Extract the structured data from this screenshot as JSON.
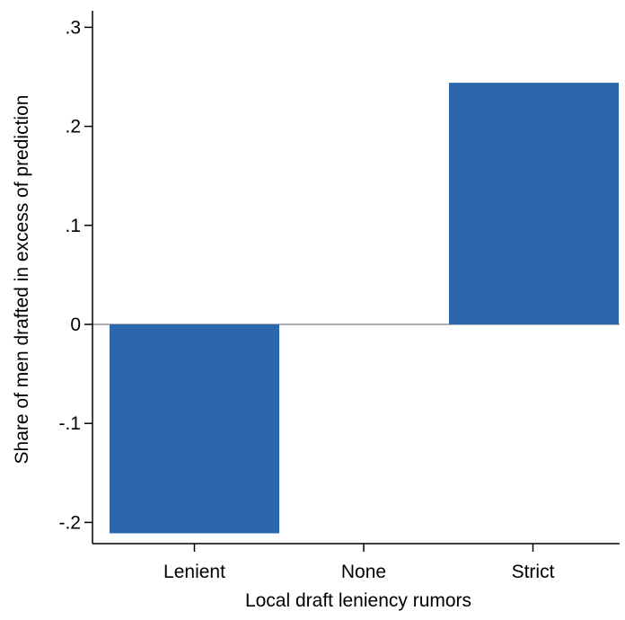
{
  "chart_data": {
    "type": "bar",
    "title": "",
    "xlabel": "Local draft leniency rumors",
    "ylabel": "Share of men drafted in excess of prediction",
    "categories": [
      "Lenient",
      "None",
      "Strict"
    ],
    "values": [
      -0.211,
      0.0,
      0.244
    ],
    "ylim": [
      -0.21,
      0.3
    ],
    "yticks": [
      -0.2,
      -0.1,
      0,
      0.1,
      0.2,
      0.3
    ],
    "ytick_labels": [
      "-.2",
      "-.1",
      "0",
      ".1",
      ".2",
      ".3"
    ],
    "grid": false,
    "legend": "none",
    "colors": {
      "bar": "#2c66ad",
      "zero_line": "#b0b0b0",
      "axis": "#000000"
    }
  }
}
